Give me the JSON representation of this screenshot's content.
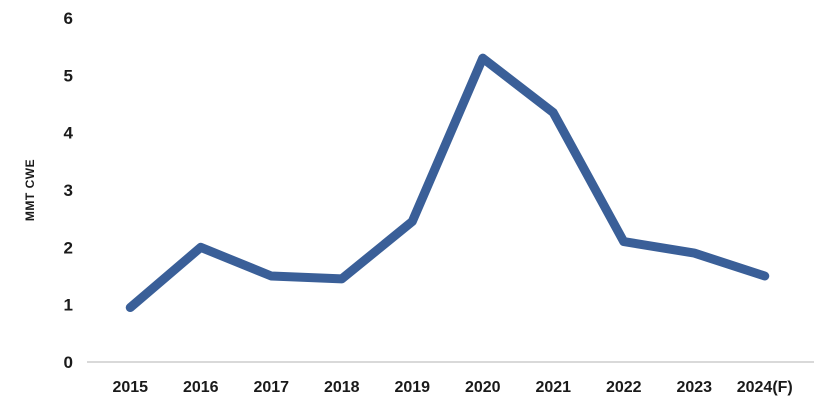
{
  "chart_data": {
    "type": "line",
    "categories": [
      "2015",
      "2016",
      "2017",
      "2018",
      "2019",
      "2020",
      "2021",
      "2022",
      "2023",
      "2024(F)"
    ],
    "values": [
      0.95,
      2.0,
      1.5,
      1.45,
      2.45,
      5.3,
      4.35,
      2.1,
      1.9,
      1.5
    ],
    "title": "",
    "xlabel": "",
    "ylabel": "MMT CWE",
    "ylim": [
      0,
      6
    ],
    "yticks": [
      0,
      1,
      2,
      3,
      4,
      5,
      6
    ],
    "grid": false,
    "legend_position": "none",
    "line_color": "#3a5f98",
    "axis_line_color": "#d9d9d9"
  }
}
